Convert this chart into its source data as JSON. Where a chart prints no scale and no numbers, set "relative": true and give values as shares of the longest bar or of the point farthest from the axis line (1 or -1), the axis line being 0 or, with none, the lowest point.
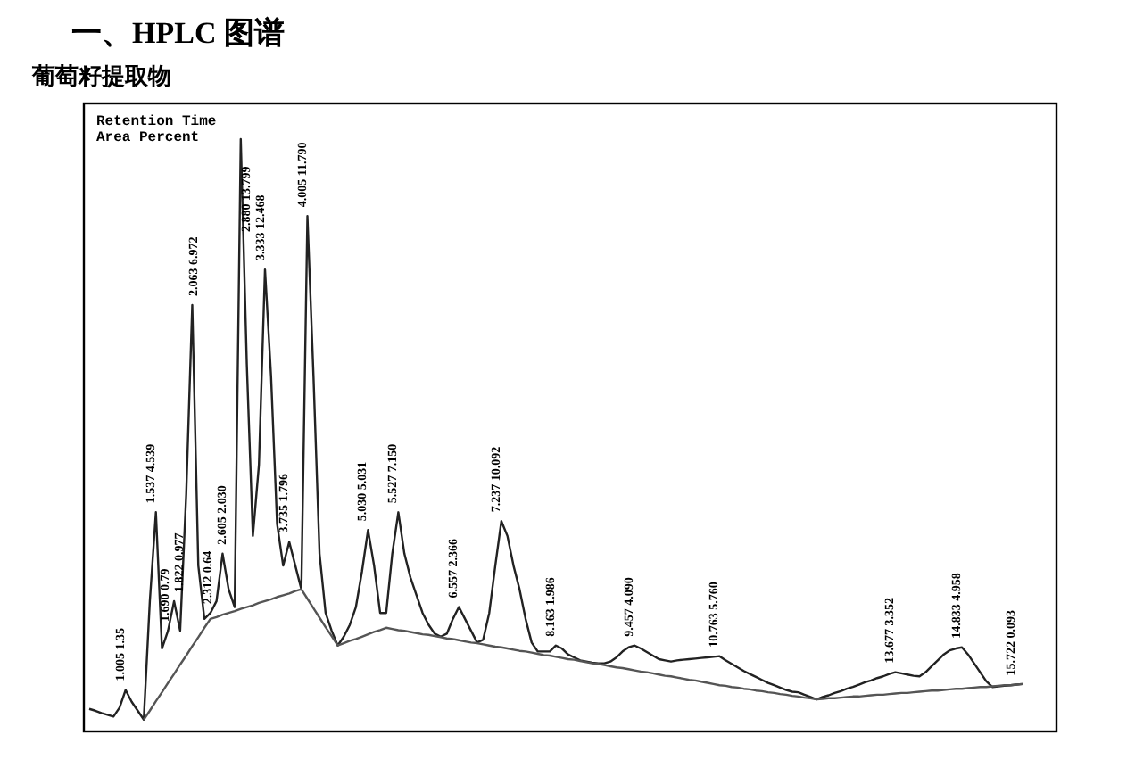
{
  "chart_data": {
    "type": "line",
    "title": "一、HPLC 图谱",
    "subtitle": "葡萄籽提取物",
    "relative": true,
    "categories": [
      null,
      null,
      null,
      null,
      null,
      null,
      null,
      null,
      null,
      null,
      null,
      null,
      null,
      null,
      null,
      null,
      null,
      null,
      null,
      null,
      null,
      null,
      null,
      null,
      null,
      null,
      null,
      null,
      null,
      null,
      null,
      null,
      null,
      null,
      null,
      null,
      null,
      null,
      null,
      null,
      null,
      null,
      null,
      null,
      null,
      null,
      null,
      null,
      null,
      null,
      null,
      null,
      null,
      null,
      null,
      null,
      null,
      null,
      null,
      null,
      null,
      null,
      null,
      null,
      null,
      null,
      null,
      null,
      null,
      null,
      null,
      null,
      null,
      null,
      null,
      null,
      null,
      null,
      null,
      null,
      null,
      null,
      null,
      null,
      null,
      null,
      null,
      null,
      null,
      null,
      null,
      null,
      null,
      null,
      null,
      null,
      null,
      null,
      null,
      null,
      null,
      null,
      null,
      null,
      null,
      null,
      null,
      null,
      null,
      null,
      null,
      null,
      null,
      null,
      null,
      null,
      null,
      null,
      null,
      null,
      null,
      null,
      null,
      null,
      null,
      null,
      null,
      null,
      null,
      null,
      null,
      null,
      null,
      null,
      null,
      null,
      null,
      null,
      null,
      null,
      null,
      null,
      null,
      null,
      null,
      null,
      null,
      null,
      null,
      null,
      null,
      null,
      null,
      null,
      null
    ],
    "series": [
      {
        "color": "#222222",
        "values": [
          0.038,
          0.035,
          0.031,
          0.028,
          0.025,
          0.04,
          0.07,
          0.05,
          0.035,
          0.02,
          0.22,
          0.37,
          0.14,
          0.17,
          0.22,
          0.17,
          0.4,
          0.72,
          0.28,
          0.19,
          0.2,
          0.22,
          0.3,
          0.24,
          0.21,
          1.0,
          0.62,
          0.33,
          0.45,
          0.78,
          0.6,
          0.35,
          0.28,
          0.32,
          0.28,
          0.24,
          0.87,
          0.6,
          0.3,
          0.2,
          0.17,
          0.145,
          0.16,
          0.18,
          0.21,
          0.27,
          0.34,
          0.28,
          0.2,
          0.2,
          0.3,
          0.37,
          0.3,
          0.26,
          0.23,
          0.2,
          0.18,
          0.165,
          0.16,
          0.165,
          0.19,
          0.21,
          0.19,
          0.17,
          0.15,
          0.155,
          0.2,
          0.28,
          0.355,
          0.33,
          0.28,
          0.24,
          0.19,
          0.15,
          0.135,
          0.135,
          0.135,
          0.145,
          0.14,
          0.13,
          0.125,
          0.12,
          0.118,
          0.116,
          0.115,
          0.115,
          0.118,
          0.125,
          0.135,
          0.142,
          0.145,
          0.14,
          0.134,
          0.128,
          0.122,
          0.12,
          0.118,
          0.12,
          0.121,
          0.122,
          0.123,
          0.124,
          0.125,
          0.126,
          0.127,
          0.12,
          0.114,
          0.108,
          0.102,
          0.097,
          0.092,
          0.087,
          0.082,
          0.078,
          0.074,
          0.07,
          0.067,
          0.066,
          0.062,
          0.058,
          0.054,
          0.058,
          0.061,
          0.065,
          0.068,
          0.072,
          0.075,
          0.079,
          0.083,
          0.086,
          0.09,
          0.093,
          0.097,
          0.1,
          0.098,
          0.096,
          0.094,
          0.093,
          0.1,
          0.11,
          0.12,
          0.13,
          0.137,
          0.14,
          0.142,
          0.13,
          0.115,
          0.1,
          0.085,
          0.075,
          0.076,
          0.077,
          0.078,
          0.079,
          0.08
        ]
      },
      {
        "color": "#555555",
        "values": [
          null,
          null,
          null,
          null,
          null,
          null,
          null,
          null,
          null,
          0.02,
          0.035,
          0.051,
          0.066,
          0.082,
          0.097,
          0.113,
          0.128,
          0.144,
          0.159,
          0.175,
          0.19,
          0.193,
          0.197,
          0.2,
          0.203,
          0.207,
          0.21,
          0.213,
          0.217,
          0.22,
          0.223,
          0.227,
          0.23,
          0.233,
          0.237,
          0.24,
          0.224,
          0.208,
          0.192,
          0.176,
          0.161,
          0.145,
          0.149,
          0.153,
          0.156,
          0.16,
          0.164,
          0.168,
          0.171,
          0.175,
          0.173,
          0.171,
          0.17,
          0.168,
          0.166,
          0.164,
          0.163,
          0.161,
          0.159,
          0.157,
          0.156,
          0.154,
          0.152,
          0.15,
          0.149,
          0.147,
          0.145,
          0.143,
          0.142,
          0.14,
          0.138,
          0.136,
          0.135,
          0.133,
          0.131,
          0.129,
          0.128,
          0.126,
          0.124,
          0.122,
          0.121,
          0.119,
          0.117,
          0.115,
          0.114,
          0.112,
          0.11,
          0.108,
          0.107,
          0.105,
          0.103,
          0.101,
          0.1,
          0.098,
          0.096,
          0.094,
          0.093,
          0.091,
          0.089,
          0.087,
          0.086,
          0.084,
          0.082,
          0.08,
          0.078,
          0.077,
          0.075,
          0.074,
          0.072,
          0.071,
          0.069,
          0.068,
          0.066,
          0.065,
          0.063,
          0.062,
          0.06,
          0.059,
          0.057,
          0.056,
          0.054,
          0.055,
          0.056,
          0.056,
          0.057,
          0.058,
          0.059,
          0.059,
          0.06,
          0.061,
          0.062,
          0.062,
          0.063,
          0.064,
          0.065,
          0.065,
          0.066,
          0.067,
          0.068,
          0.069,
          0.069,
          0.07,
          0.071,
          0.072,
          0.072,
          0.073,
          0.074,
          0.075,
          0.075,
          0.076,
          0.077,
          0.078,
          0.078,
          0.079,
          0.08
        ]
      }
    ],
    "annotations": [
      "Retention Time",
      "Area Percent",
      {
        "text": "1.005 1.35",
        "y": 0.07
      },
      {
        "text": "1.537 4.539",
        "y": 0.37
      },
      {
        "text": "1.690 0.79",
        "y": 0.17
      },
      {
        "text": "1.822 0.977",
        "y": 0.22
      },
      {
        "text": "2.063 6.972",
        "y": 0.72
      },
      {
        "text": "2.312 0.64",
        "y": 0.2
      },
      {
        "text": "2.605 2.030",
        "y": 0.3
      },
      {
        "text": "2.880 13.799",
        "y": 1.0
      },
      {
        "text": "3.333 12.468",
        "y": 0.78
      },
      {
        "text": "3.735 1.796",
        "y": 0.32
      },
      {
        "text": "4.005 11.790",
        "y": 0.87
      },
      {
        "text": "5.030 5.031",
        "y": 0.34
      },
      {
        "text": "5.527 7.150",
        "y": 0.37
      },
      {
        "text": "6.557 2.366",
        "y": 0.21
      },
      {
        "text": "7.237 10.092",
        "y": 0.355
      },
      {
        "text": "8.163 1.986",
        "y": 0.145
      },
      {
        "text": "9.457 4.090",
        "y": 0.145
      },
      {
        "text": "10.763 5.760",
        "y": 0.127
      },
      {
        "text": "13.677 3.352",
        "y": 0.1
      },
      {
        "text": "14.833 4.958",
        "y": 0.142
      },
      {
        "text": "15.722 0.093",
        "y": 0.079
      }
    ]
  }
}
